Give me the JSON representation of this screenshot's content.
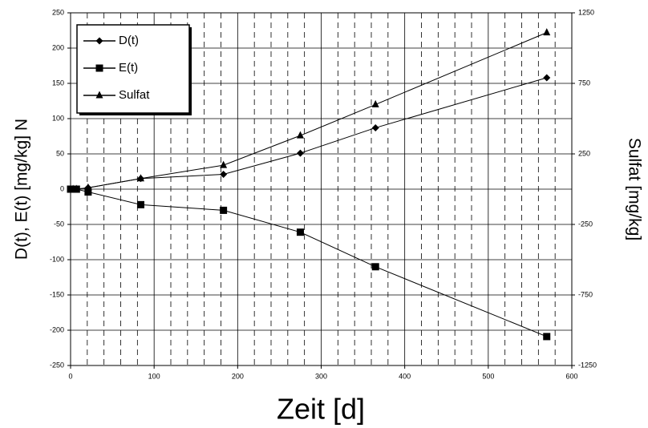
{
  "chart_data": {
    "type": "line",
    "x_label": "Zeit [d]",
    "y_label": "D(t),  E(t) [mg/kg] N",
    "y2_label": "Sulfat [mg/kg]",
    "x": [
      0,
      3,
      7,
      21,
      84,
      183,
      275,
      365,
      570
    ],
    "series": [
      {
        "name": "D(t)",
        "color": "#000000",
        "marker": "diamond",
        "values": [
          0,
          0,
          0,
          2,
          15,
          21,
          51,
          87,
          158
        ]
      },
      {
        "name": "E(t)",
        "color": "#000000",
        "marker": "square",
        "values": [
          0,
          0,
          0,
          -4,
          -22,
          -30,
          -61,
          -110,
          -209
        ]
      },
      {
        "name": "Sulfat",
        "color": "#000000",
        "marker": "triangle",
        "axis": "y2",
        "values": [
          0,
          0,
          0,
          10,
          75,
          170,
          380,
          600,
          1110
        ]
      }
    ],
    "xlim": [
      0,
      600
    ],
    "xticks": [
      0,
      100,
      200,
      300,
      400,
      500,
      600
    ],
    "ylim": [
      -250,
      250
    ],
    "yticks": [
      -250,
      -200,
      -150,
      -100,
      -50,
      0,
      50,
      100,
      150,
      200,
      250
    ],
    "y2lim": [
      -1250,
      1250
    ],
    "y2ticks": [
      -1250,
      -750,
      -250,
      250,
      750,
      1250
    ],
    "grid": true,
    "minor_grid_step": 20,
    "legend": "upper-left"
  }
}
